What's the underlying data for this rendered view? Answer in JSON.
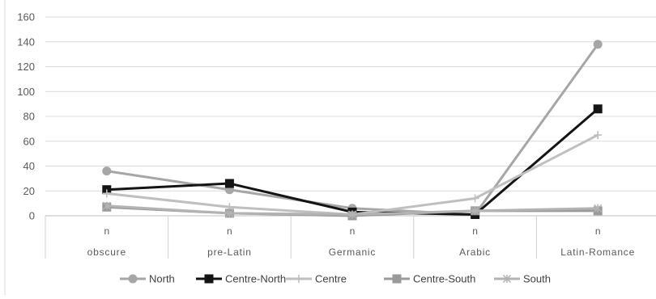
{
  "chart_data": {
    "type": "line",
    "categories": [
      "obscure",
      "pre-Latin",
      "Germanic",
      "Arabic",
      "Latin-Romance"
    ],
    "sub_labels": [
      "n",
      "n",
      "n",
      "n",
      "n"
    ],
    "ylim": [
      0,
      160
    ],
    "yticks": [
      0,
      20,
      40,
      60,
      80,
      100,
      120,
      140,
      160
    ],
    "grid": true,
    "legend_position": "bottom",
    "series": [
      {
        "name": "North",
        "values": [
          36,
          21,
          6,
          1,
          138
        ],
        "color": "#a6a6a6",
        "marker": "circle"
      },
      {
        "name": "Centre-North",
        "values": [
          21,
          26,
          3,
          1,
          86
        ],
        "color": "#141414",
        "marker": "square"
      },
      {
        "name": "Centre",
        "values": [
          18,
          7,
          1,
          14,
          65
        ],
        "color": "#bfbfbf",
        "marker": "plus"
      },
      {
        "name": "Centre-South",
        "values": [
          7,
          2,
          0,
          4,
          4
        ],
        "color": "#9a9a9a",
        "marker": "square"
      },
      {
        "name": "South",
        "values": [
          8,
          2,
          1,
          4,
          6
        ],
        "color": "#b3b3b3",
        "marker": "star"
      }
    ]
  }
}
